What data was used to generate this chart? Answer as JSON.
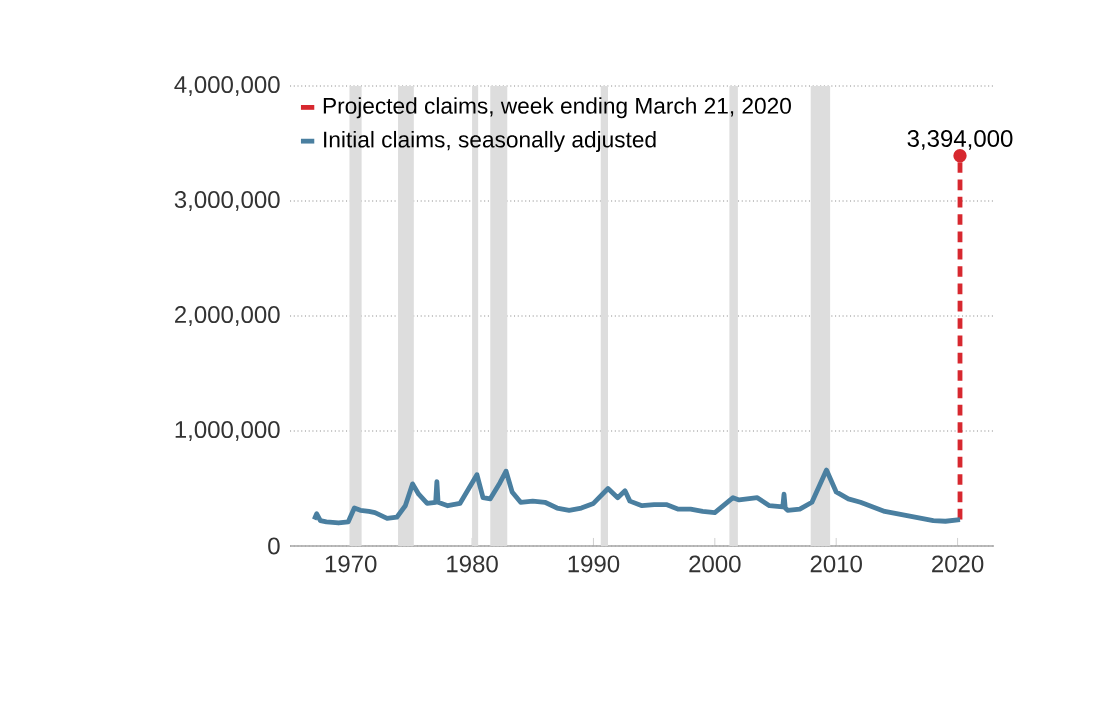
{
  "chart_data": {
    "type": "line",
    "xlim": [
      1965,
      2023
    ],
    "ylim": [
      0,
      4000000
    ],
    "xticks": [
      1970,
      1980,
      1990,
      2000,
      2010,
      2020
    ],
    "yticks": [
      {
        "value": 0,
        "label": "0"
      },
      {
        "value": 1000000,
        "label": "1,000,000"
      },
      {
        "value": 2000000,
        "label": "2,000,000"
      },
      {
        "value": 3000000,
        "label": "3,000,000"
      },
      {
        "value": 4000000,
        "label": "4,000,000"
      }
    ],
    "grid": "y",
    "legend": "top left",
    "bands": [
      {
        "axis": "x",
        "from": 1969.9,
        "to": 1970.9,
        "color": "#dddddd"
      },
      {
        "axis": "x",
        "from": 1973.9,
        "to": 1975.2,
        "color": "#dddddd"
      },
      {
        "axis": "x",
        "from": 1980.0,
        "to": 1980.5,
        "color": "#dddddd"
      },
      {
        "axis": "x",
        "from": 1981.5,
        "to": 1982.9,
        "color": "#dddddd"
      },
      {
        "axis": "x",
        "from": 1990.6,
        "to": 1991.2,
        "color": "#dddddd"
      },
      {
        "axis": "x",
        "from": 2001.2,
        "to": 2001.9,
        "color": "#dddddd"
      },
      {
        "axis": "x",
        "from": 2007.9,
        "to": 2009.5,
        "color": "#dddddd"
      }
    ],
    "annotations": [
      {
        "text": "3,394,000",
        "x": 2020.2,
        "y": 3394000
      }
    ],
    "series": [
      {
        "name": "Projected claims, week ending March 21, 2020",
        "color": "#d7282f",
        "line_style": "dashed",
        "marker": "circle",
        "x": [
          2020.2,
          2020.2
        ],
        "values": [
          230000,
          3394000
        ]
      },
      {
        "name": "Initial claims, seasonally adjusted",
        "color": "#4a7fa0",
        "line_style": "solid",
        "marker": "none",
        "x": [
          1967,
          1967.2,
          1967.5,
          1968,
          1969,
          1969.8,
          1970.3,
          1970.8,
          1971.5,
          1972,
          1973,
          1973.8,
          1974.5,
          1975.1,
          1975.6,
          1976.3,
          1977,
          1977.1,
          1977.2,
          1978,
          1979,
          1980.4,
          1980.9,
          1981.5,
          1982.3,
          1982.8,
          1983.3,
          1984,
          1985,
          1986,
          1987,
          1988,
          1989,
          1990,
          1991.2,
          1992,
          1992.6,
          1993,
          1994,
          1995,
          1996,
          1997,
          1998,
          1999,
          2000,
          2001.5,
          2002,
          2003.5,
          2004.5,
          2005.6,
          2005.7,
          2005.8,
          2006,
          2007,
          2008,
          2009.2,
          2010,
          2011,
          2012,
          2013,
          2014,
          2015,
          2016,
          2017,
          2018,
          2019,
          2020.2
        ],
        "values": [
          230000,
          280000,
          220000,
          210000,
          200000,
          210000,
          330000,
          310000,
          300000,
          290000,
          240000,
          250000,
          350000,
          540000,
          450000,
          370000,
          380000,
          560000,
          380000,
          350000,
          370000,
          620000,
          420000,
          410000,
          550000,
          650000,
          470000,
          380000,
          390000,
          380000,
          330000,
          310000,
          330000,
          370000,
          500000,
          420000,
          480000,
          390000,
          350000,
          360000,
          360000,
          320000,
          320000,
          300000,
          290000,
          420000,
          400000,
          420000,
          350000,
          340000,
          450000,
          330000,
          310000,
          320000,
          380000,
          660000,
          470000,
          410000,
          380000,
          340000,
          300000,
          280000,
          260000,
          240000,
          220000,
          215000,
          230000
        ]
      }
    ]
  }
}
